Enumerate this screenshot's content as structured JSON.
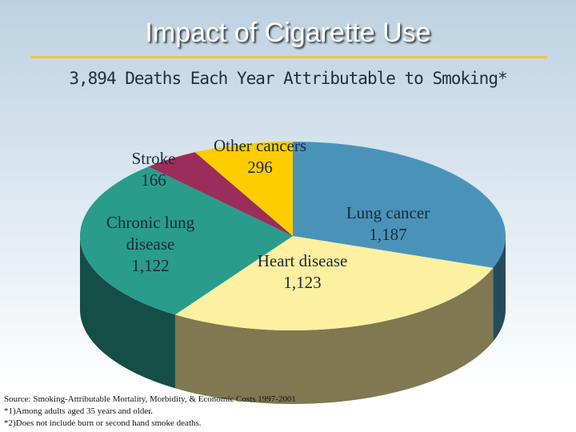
{
  "chart_data": {
    "type": "pie3d",
    "title": "Impact of Cigarette Use",
    "subtitle": "3,894 Deaths Each Year Attributable to Smoking*",
    "categories": [
      "Lung cancer",
      "Heart disease",
      "Chronic lung disease",
      "Stroke",
      "Other cancers"
    ],
    "values": [
      1187,
      1123,
      1122,
      166,
      296
    ],
    "value_labels": [
      "1,187",
      "1,123",
      "1,122",
      "166",
      "296"
    ],
    "colors": [
      "#4a93b8",
      "#fdf0a0",
      "#2a9c8c",
      "#9b2d5a",
      "#ffcc00"
    ],
    "notes": [
      "Source: Smoking-Attributable Mortality, Morbidity, & Economic Costs 1997-2001",
      "*1)Among adults aged 35 years and older.",
      "*2)Does not include burn or second hand smoke deaths."
    ]
  }
}
